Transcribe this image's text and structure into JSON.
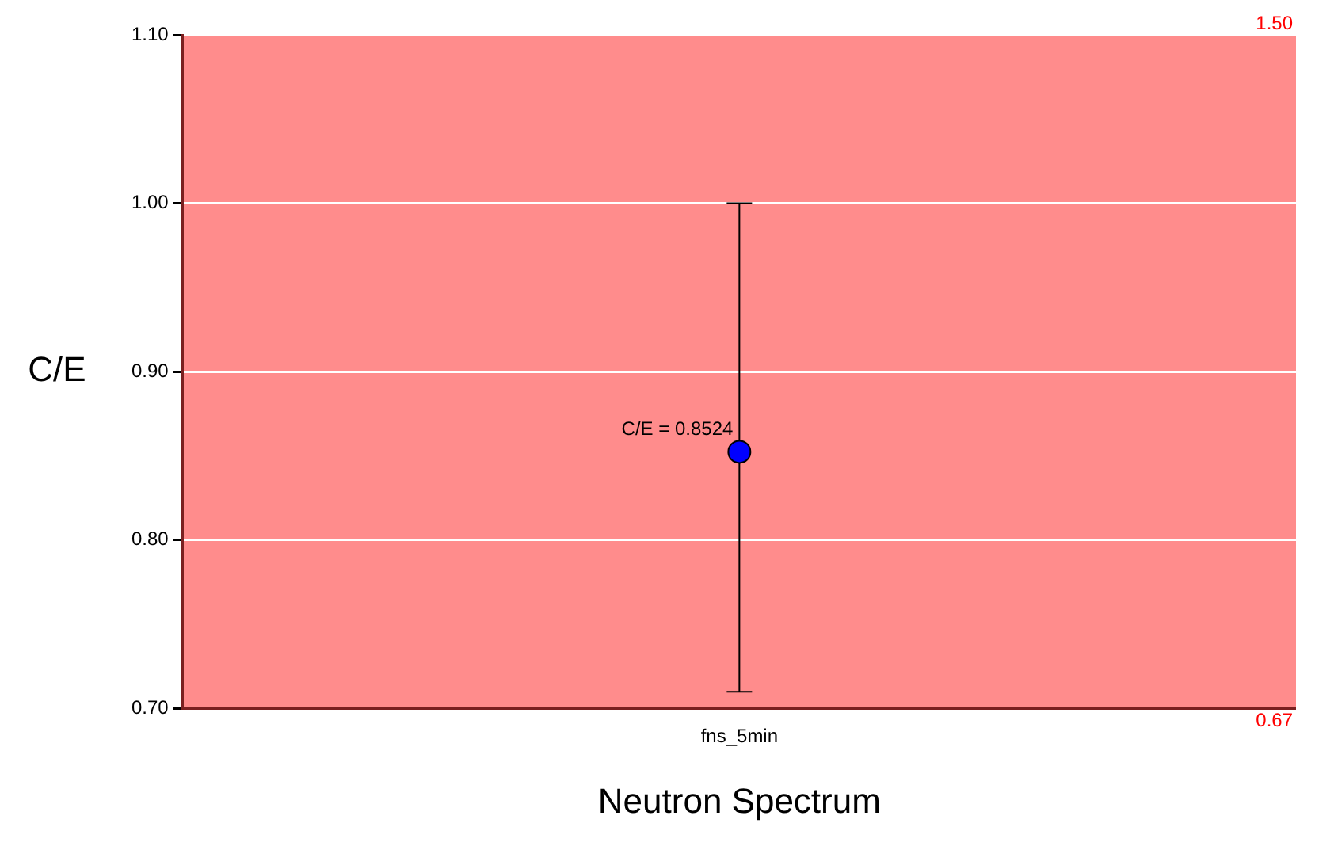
{
  "chart_data": {
    "type": "scatter",
    "xlabel": "Neutron Spectrum",
    "ylabel": "C/E",
    "categories": [
      "fns_5min"
    ],
    "series": [
      {
        "color": "#0000ff",
        "values": [
          0.8524
        ],
        "errors": [
          [
            0.71,
            1.0
          ]
        ]
      }
    ],
    "ylim": [
      0.7,
      1.1
    ],
    "yticks": [
      {
        "value": 0.7,
        "label": "0.70"
      },
      {
        "value": 0.8,
        "label": "0.80"
      },
      {
        "value": 0.9,
        "label": "0.90"
      },
      {
        "value": 1.0,
        "label": "1.00"
      },
      {
        "value": 1.1,
        "label": "1.10"
      }
    ],
    "bands": [
      {
        "axis": "y",
        "from": 0.67,
        "to": 1.5,
        "color": "#ff0000"
      }
    ],
    "annotations": [
      "1.50",
      "0.67",
      {
        "text": "C/E = 0.8524",
        "x": "fns_5min",
        "y": 0.8524
      }
    ],
    "grid": "y",
    "marker": "circle",
    "legend": false
  }
}
